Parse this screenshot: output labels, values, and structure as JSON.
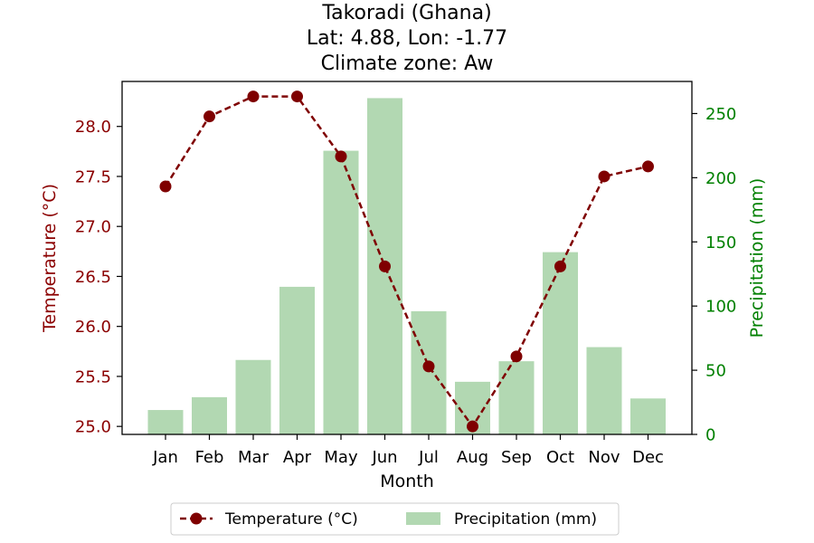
{
  "chart_data": {
    "type": "bar+line",
    "title_lines": [
      "Takoradi (Ghana)",
      "Lat: 4.88, Lon: -1.77",
      "Climate zone: Aw"
    ],
    "xlabel": "Month",
    "ylabel_left": "Temperature (°C)",
    "ylabel_right": "Precipitation (mm)",
    "categories": [
      "Jan",
      "Feb",
      "Mar",
      "Apr",
      "May",
      "Jun",
      "Jul",
      "Aug",
      "Sep",
      "Oct",
      "Nov",
      "Dec"
    ],
    "temperature": {
      "name": "Temperature (°C)",
      "values": [
        27.4,
        28.1,
        28.3,
        28.3,
        27.7,
        26.6,
        25.6,
        25.0,
        25.7,
        26.6,
        27.5,
        27.6
      ],
      "color": "#7f0000",
      "style": "dashed line with circle markers"
    },
    "precipitation": {
      "name": "Precipitation (mm)",
      "values": [
        19,
        29,
        58,
        115,
        221,
        262,
        96,
        41,
        57,
        142,
        68,
        28
      ],
      "color": "#b2d8b2"
    },
    "y_left_ticks": [
      "25.0",
      "25.5",
      "26.0",
      "26.5",
      "27.0",
      "27.5",
      "28.0"
    ],
    "y_left_range": [
      24.92,
      28.45
    ],
    "y_right_ticks": [
      "0",
      "50",
      "100",
      "150",
      "200",
      "250"
    ],
    "y_right_range": [
      0,
      275
    ],
    "left_axis_color": "#8b0000",
    "right_axis_color": "#008000",
    "legend_position": "bottom-center"
  }
}
